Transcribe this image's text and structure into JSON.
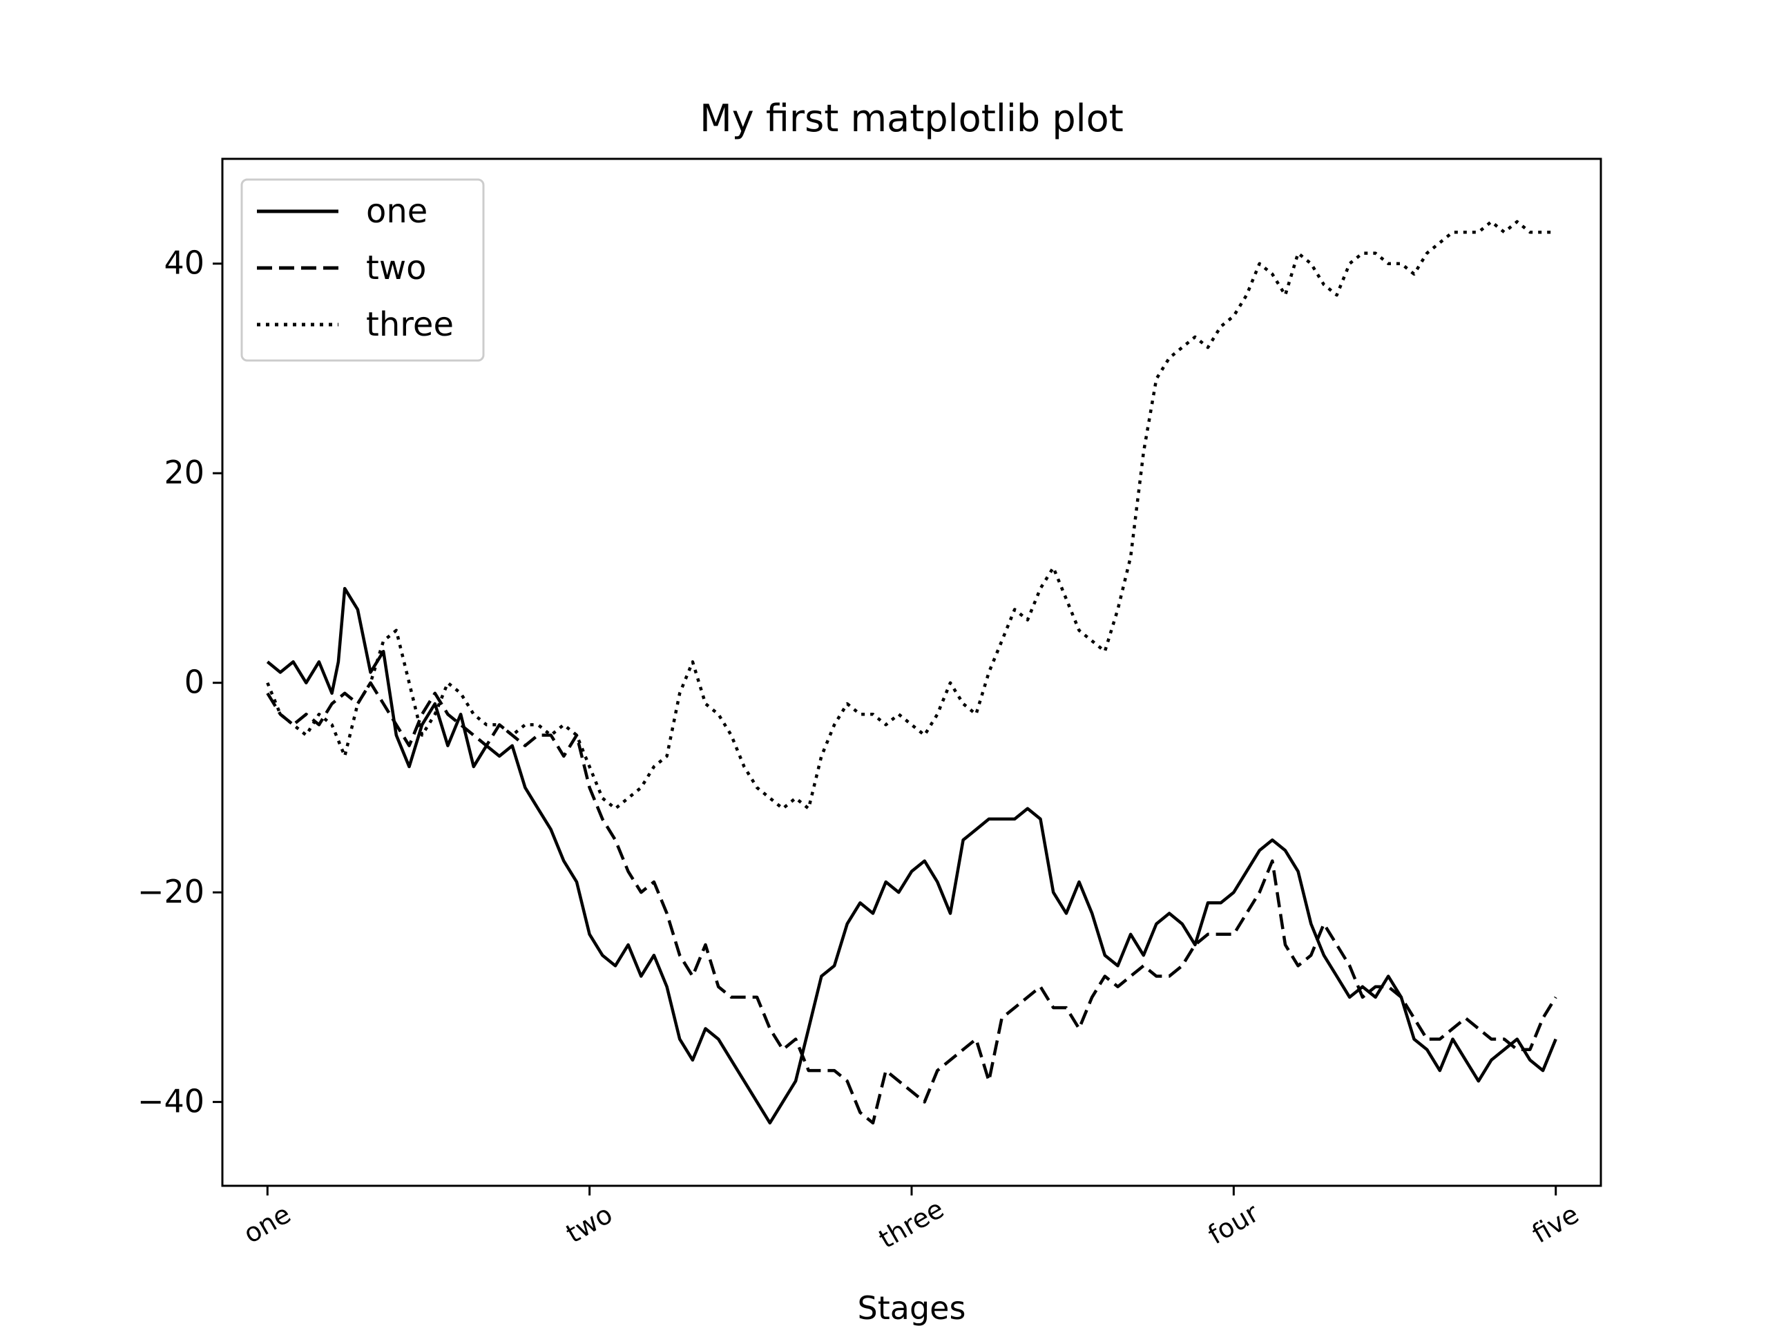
{
  "chart_data": {
    "type": "line",
    "title": "My first matplotlib plot",
    "xlabel": "Stages",
    "ylabel": "",
    "xlim": [
      -35,
      1035
    ],
    "ylim": [
      -48,
      50
    ],
    "x_ticks": [
      {
        "value": 0,
        "label": "one"
      },
      {
        "value": 250,
        "label": "two"
      },
      {
        "value": 500,
        "label": "three"
      },
      {
        "value": 750,
        "label": "four"
      },
      {
        "value": 1000,
        "label": "five"
      }
    ],
    "y_ticks": [
      {
        "value": -40,
        "label": "−40"
      },
      {
        "value": -20,
        "label": "−20"
      },
      {
        "value": 0,
        "label": "0"
      },
      {
        "value": 20,
        "label": "20"
      },
      {
        "value": 40,
        "label": "40"
      }
    ],
    "grid": false,
    "legend_position": "top-left",
    "series": [
      {
        "name": "one",
        "style": "solid",
        "color": "#000000",
        "points": [
          [
            0,
            2
          ],
          [
            10,
            1
          ],
          [
            20,
            2
          ],
          [
            30,
            0
          ],
          [
            40,
            2
          ],
          [
            50,
            -1
          ],
          [
            55,
            2
          ],
          [
            60,
            9
          ],
          [
            70,
            7
          ],
          [
            80,
            1
          ],
          [
            90,
            3
          ],
          [
            100,
            -5
          ],
          [
            110,
            -8
          ],
          [
            120,
            -4
          ],
          [
            130,
            -2
          ],
          [
            140,
            -6
          ],
          [
            150,
            -3
          ],
          [
            160,
            -8
          ],
          [
            170,
            -6
          ],
          [
            180,
            -7
          ],
          [
            190,
            -6
          ],
          [
            200,
            -10
          ],
          [
            210,
            -12
          ],
          [
            220,
            -14
          ],
          [
            230,
            -17
          ],
          [
            240,
            -19
          ],
          [
            250,
            -24
          ],
          [
            260,
            -26
          ],
          [
            270,
            -27
          ],
          [
            280,
            -25
          ],
          [
            290,
            -28
          ],
          [
            300,
            -26
          ],
          [
            310,
            -29
          ],
          [
            320,
            -34
          ],
          [
            330,
            -36
          ],
          [
            340,
            -33
          ],
          [
            350,
            -34
          ],
          [
            360,
            -36
          ],
          [
            370,
            -38
          ],
          [
            380,
            -40
          ],
          [
            390,
            -42
          ],
          [
            400,
            -40
          ],
          [
            410,
            -38
          ],
          [
            420,
            -33
          ],
          [
            430,
            -28
          ],
          [
            440,
            -27
          ],
          [
            450,
            -23
          ],
          [
            460,
            -21
          ],
          [
            470,
            -22
          ],
          [
            480,
            -19
          ],
          [
            490,
            -20
          ],
          [
            500,
            -18
          ],
          [
            510,
            -17
          ],
          [
            520,
            -19
          ],
          [
            530,
            -22
          ],
          [
            540,
            -15
          ],
          [
            550,
            -14
          ],
          [
            560,
            -13
          ],
          [
            570,
            -13
          ],
          [
            580,
            -13
          ],
          [
            590,
            -12
          ],
          [
            600,
            -13
          ],
          [
            610,
            -20
          ],
          [
            620,
            -22
          ],
          [
            630,
            -19
          ],
          [
            640,
            -22
          ],
          [
            650,
            -26
          ],
          [
            660,
            -27
          ],
          [
            670,
            -24
          ],
          [
            680,
            -26
          ],
          [
            690,
            -23
          ],
          [
            700,
            -22
          ],
          [
            710,
            -23
          ],
          [
            720,
            -25
          ],
          [
            730,
            -21
          ],
          [
            740,
            -21
          ],
          [
            750,
            -20
          ],
          [
            760,
            -18
          ],
          [
            770,
            -16
          ],
          [
            780,
            -15
          ],
          [
            790,
            -16
          ],
          [
            800,
            -18
          ],
          [
            810,
            -23
          ],
          [
            820,
            -26
          ],
          [
            830,
            -28
          ],
          [
            840,
            -30
          ],
          [
            850,
            -29
          ],
          [
            860,
            -30
          ],
          [
            870,
            -28
          ],
          [
            880,
            -30
          ],
          [
            890,
            -34
          ],
          [
            900,
            -35
          ],
          [
            910,
            -37
          ],
          [
            920,
            -34
          ],
          [
            930,
            -36
          ],
          [
            940,
            -38
          ],
          [
            950,
            -36
          ],
          [
            960,
            -35
          ],
          [
            970,
            -34
          ],
          [
            980,
            -36
          ],
          [
            990,
            -37
          ],
          [
            1000,
            -34
          ]
        ]
      },
      {
        "name": "two",
        "style": "dashed",
        "color": "#000000",
        "points": [
          [
            0,
            -1
          ],
          [
            10,
            -3
          ],
          [
            20,
            -4
          ],
          [
            30,
            -3
          ],
          [
            40,
            -4
          ],
          [
            50,
            -2
          ],
          [
            60,
            -1
          ],
          [
            70,
            -2
          ],
          [
            80,
            0
          ],
          [
            90,
            -2
          ],
          [
            100,
            -4
          ],
          [
            110,
            -6
          ],
          [
            120,
            -3
          ],
          [
            130,
            -1
          ],
          [
            140,
            -3
          ],
          [
            150,
            -4
          ],
          [
            160,
            -5
          ],
          [
            170,
            -6
          ],
          [
            180,
            -4
          ],
          [
            190,
            -5
          ],
          [
            200,
            -6
          ],
          [
            210,
            -5
          ],
          [
            220,
            -5
          ],
          [
            230,
            -7
          ],
          [
            240,
            -5
          ],
          [
            250,
            -10
          ],
          [
            260,
            -13
          ],
          [
            270,
            -15
          ],
          [
            280,
            -18
          ],
          [
            290,
            -20
          ],
          [
            300,
            -19
          ],
          [
            310,
            -22
          ],
          [
            320,
            -26
          ],
          [
            330,
            -28
          ],
          [
            340,
            -25
          ],
          [
            350,
            -29
          ],
          [
            360,
            -30
          ],
          [
            370,
            -30
          ],
          [
            380,
            -30
          ],
          [
            390,
            -33
          ],
          [
            400,
            -35
          ],
          [
            410,
            -34
          ],
          [
            420,
            -37
          ],
          [
            430,
            -37
          ],
          [
            440,
            -37
          ],
          [
            450,
            -38
          ],
          [
            460,
            -41
          ],
          [
            470,
            -42
          ],
          [
            480,
            -37
          ],
          [
            490,
            -38
          ],
          [
            500,
            -39
          ],
          [
            510,
            -40
          ],
          [
            520,
            -37
          ],
          [
            530,
            -36
          ],
          [
            540,
            -35
          ],
          [
            550,
            -34
          ],
          [
            560,
            -38
          ],
          [
            570,
            -32
          ],
          [
            580,
            -31
          ],
          [
            590,
            -30
          ],
          [
            600,
            -29
          ],
          [
            610,
            -31
          ],
          [
            620,
            -31
          ],
          [
            630,
            -33
          ],
          [
            640,
            -30
          ],
          [
            650,
            -28
          ],
          [
            660,
            -29
          ],
          [
            670,
            -28
          ],
          [
            680,
            -27
          ],
          [
            690,
            -28
          ],
          [
            700,
            -28
          ],
          [
            710,
            -27
          ],
          [
            720,
            -25
          ],
          [
            730,
            -24
          ],
          [
            740,
            -24
          ],
          [
            750,
            -24
          ],
          [
            760,
            -22
          ],
          [
            770,
            -20
          ],
          [
            780,
            -17
          ],
          [
            790,
            -25
          ],
          [
            800,
            -27
          ],
          [
            810,
            -26
          ],
          [
            820,
            -23
          ],
          [
            830,
            -25
          ],
          [
            840,
            -27
          ],
          [
            850,
            -30
          ],
          [
            860,
            -29
          ],
          [
            870,
            -29
          ],
          [
            880,
            -30
          ],
          [
            890,
            -32
          ],
          [
            900,
            -34
          ],
          [
            910,
            -34
          ],
          [
            920,
            -33
          ],
          [
            930,
            -32
          ],
          [
            940,
            -33
          ],
          [
            950,
            -34
          ],
          [
            960,
            -34
          ],
          [
            970,
            -35
          ],
          [
            980,
            -35
          ],
          [
            990,
            -32
          ],
          [
            1000,
            -30
          ]
        ]
      },
      {
        "name": "three",
        "style": "dotted",
        "color": "#000000",
        "points": [
          [
            0,
            0
          ],
          [
            10,
            -3
          ],
          [
            20,
            -4
          ],
          [
            30,
            -5
          ],
          [
            40,
            -3
          ],
          [
            50,
            -4
          ],
          [
            60,
            -7
          ],
          [
            70,
            -2
          ],
          [
            80,
            0
          ],
          [
            90,
            4
          ],
          [
            100,
            5
          ],
          [
            110,
            0
          ],
          [
            120,
            -5
          ],
          [
            130,
            -3
          ],
          [
            140,
            0
          ],
          [
            150,
            -1
          ],
          [
            160,
            -3
          ],
          [
            170,
            -4
          ],
          [
            180,
            -4
          ],
          [
            190,
            -5
          ],
          [
            200,
            -4
          ],
          [
            210,
            -4
          ],
          [
            220,
            -5
          ],
          [
            230,
            -4
          ],
          [
            240,
            -5
          ],
          [
            250,
            -8
          ],
          [
            260,
            -11
          ],
          [
            270,
            -12
          ],
          [
            280,
            -11
          ],
          [
            290,
            -10
          ],
          [
            300,
            -8
          ],
          [
            310,
            -7
          ],
          [
            320,
            -1
          ],
          [
            330,
            2
          ],
          [
            340,
            -2
          ],
          [
            350,
            -3
          ],
          [
            360,
            -5
          ],
          [
            370,
            -8
          ],
          [
            380,
            -10
          ],
          [
            390,
            -11
          ],
          [
            400,
            -12
          ],
          [
            410,
            -11
          ],
          [
            420,
            -12
          ],
          [
            430,
            -7
          ],
          [
            440,
            -4
          ],
          [
            450,
            -2
          ],
          [
            460,
            -3
          ],
          [
            470,
            -3
          ],
          [
            480,
            -4
          ],
          [
            490,
            -3
          ],
          [
            500,
            -4
          ],
          [
            510,
            -5
          ],
          [
            520,
            -3
          ],
          [
            530,
            0
          ],
          [
            540,
            -2
          ],
          [
            550,
            -3
          ],
          [
            560,
            1
          ],
          [
            570,
            4
          ],
          [
            580,
            7
          ],
          [
            590,
            6
          ],
          [
            600,
            9
          ],
          [
            610,
            11
          ],
          [
            620,
            8
          ],
          [
            630,
            5
          ],
          [
            640,
            4
          ],
          [
            650,
            3
          ],
          [
            660,
            7
          ],
          [
            670,
            12
          ],
          [
            680,
            22
          ],
          [
            690,
            29
          ],
          [
            700,
            31
          ],
          [
            710,
            32
          ],
          [
            720,
            33
          ],
          [
            730,
            32
          ],
          [
            740,
            34
          ],
          [
            750,
            35
          ],
          [
            760,
            37
          ],
          [
            770,
            40
          ],
          [
            780,
            39
          ],
          [
            790,
            37
          ],
          [
            800,
            41
          ],
          [
            810,
            40
          ],
          [
            820,
            38
          ],
          [
            830,
            37
          ],
          [
            840,
            40
          ],
          [
            850,
            41
          ],
          [
            860,
            41
          ],
          [
            870,
            40
          ],
          [
            880,
            40
          ],
          [
            890,
            39
          ],
          [
            900,
            41
          ],
          [
            910,
            42
          ],
          [
            920,
            43
          ],
          [
            930,
            43
          ],
          [
            940,
            43
          ],
          [
            950,
            44
          ],
          [
            960,
            43
          ],
          [
            970,
            44
          ],
          [
            980,
            43
          ],
          [
            990,
            43
          ],
          [
            1000,
            43
          ]
        ]
      }
    ]
  }
}
